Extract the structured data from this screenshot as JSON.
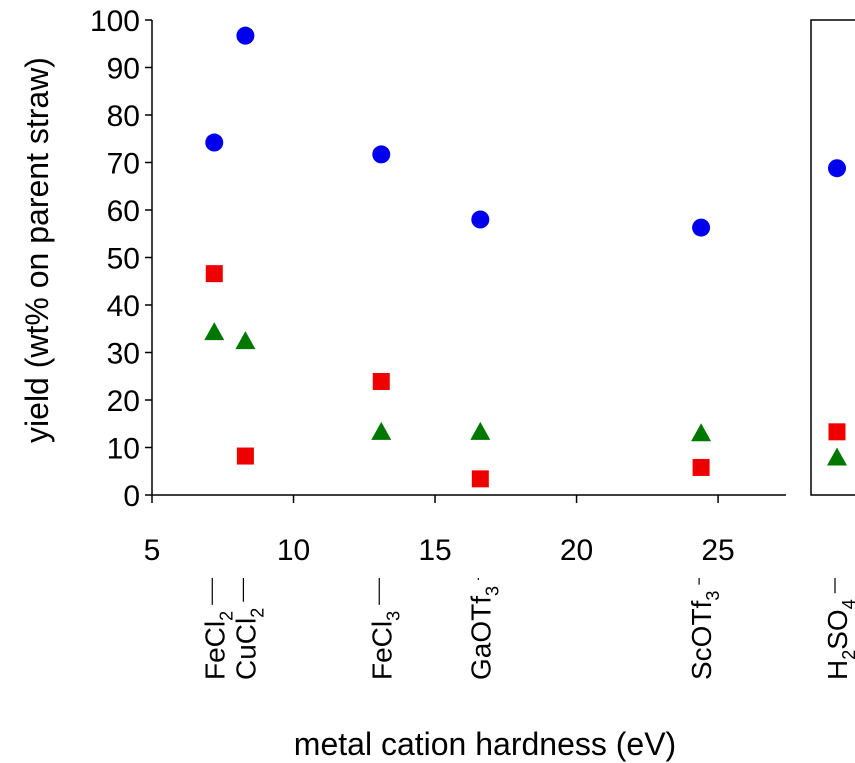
{
  "chart_data": {
    "type": "scatter",
    "xlabel": "metal cation hardness (eV)",
    "ylabel": "yield (wt% on parent straw)",
    "xlim": [
      5,
      27.4
    ],
    "ylim": [
      0,
      100
    ],
    "x_ticks": [
      5,
      10,
      15,
      20,
      25
    ],
    "y_ticks": [
      0,
      10,
      20,
      30,
      40,
      50,
      60,
      70,
      80,
      90,
      100
    ],
    "grid": false,
    "legend": "none",
    "categories": [
      {
        "base": "FeCl",
        "sub": "2",
        "suffix": "",
        "x": 7.2
      },
      {
        "base": "CuCl",
        "sub": "2",
        "suffix": "",
        "x": 8.3
      },
      {
        "base": "FeCl",
        "sub": "3",
        "suffix": "",
        "x": 13.1
      },
      {
        "base": "GaOTf",
        "sub": "3",
        "suffix": "",
        "x": 16.6
      },
      {
        "base": "ScOTf",
        "sub": "3",
        "suffix": "",
        "x": 24.4
      }
    ],
    "series": [
      {
        "marker": "circle",
        "color": "#0000ee",
        "x": [
          7.2,
          8.3,
          13.1,
          16.6,
          24.4
        ],
        "y": [
          74.2,
          96.7,
          71.7,
          58.0,
          56.3
        ]
      },
      {
        "marker": "square",
        "color": "#ee0000",
        "x": [
          7.2,
          8.3,
          13.1,
          16.6,
          24.4
        ],
        "y": [
          46.6,
          8.2,
          23.9,
          3.4,
          5.8
        ]
      },
      {
        "marker": "triangle",
        "color": "#007700",
        "x": [
          7.2,
          8.3,
          13.1,
          16.6,
          24.4
        ],
        "y": [
          34.3,
          32.4,
          13.3,
          13.3,
          13.0
        ]
      }
    ],
    "reference": {
      "label_parts": [
        "H",
        "2",
        "SO",
        "4",
        ""
      ],
      "circle": 68.8,
      "square": 13.3,
      "triangle": 7.9
    }
  }
}
